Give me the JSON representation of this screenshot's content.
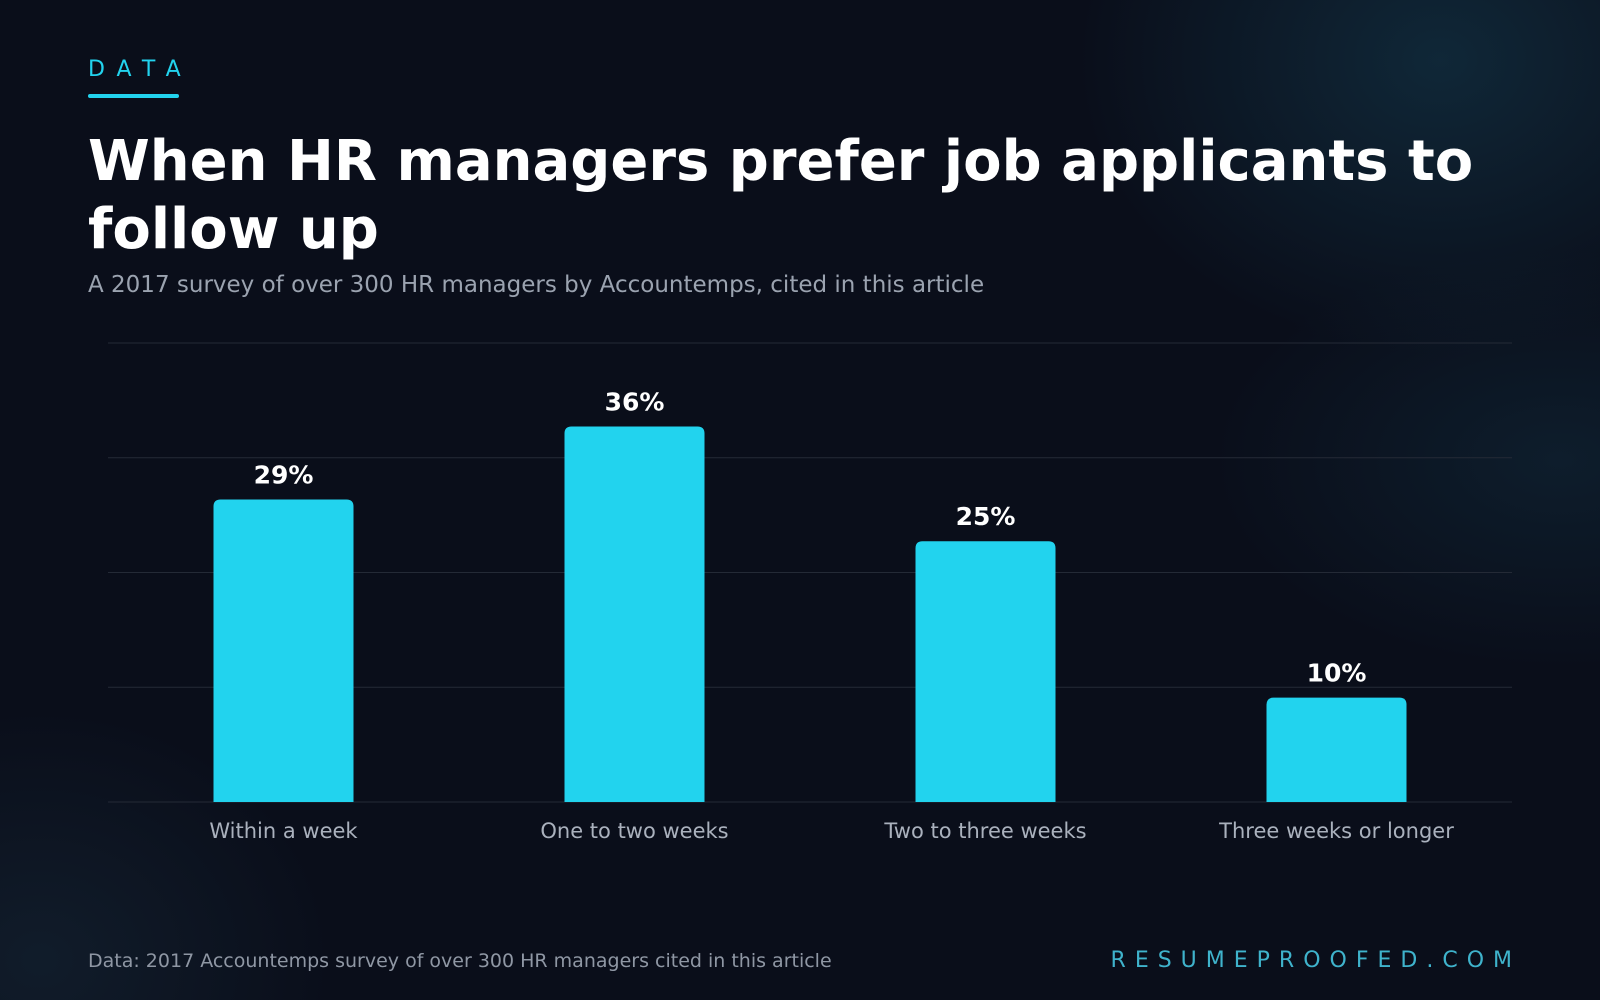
{
  "header": {
    "eyebrow": "DATA",
    "title": "When HR managers prefer job applicants to follow up",
    "subtitle": "A 2017 survey of over 300 HR managers by Accountemps, cited in this article"
  },
  "footer": {
    "note": "Data: 2017 Accountemps survey of over 300 HR managers cited in this article",
    "brand": "RESUMEPROOFED.COM"
  },
  "colors": {
    "accent": "#22d3ee",
    "brand": "#3fb3cc",
    "grid": "#242a36",
    "value_label": "#ffffff",
    "tick_label": "#aab1bd"
  },
  "chart_data": {
    "type": "bar",
    "title": "When HR managers prefer job applicants to follow up",
    "subtitle": "A 2017 survey of over 300 HR managers by Accountemps, cited in this article",
    "categories": [
      "Within a week",
      "One to two weeks",
      "Two to three weeks",
      "Three weeks or longer"
    ],
    "values": [
      29,
      36,
      25,
      10
    ],
    "value_labels": [
      "29%",
      "36%",
      "25%",
      "10%"
    ],
    "unit": "%",
    "xlabel": "",
    "ylabel": "",
    "ylim": [
      0,
      44
    ],
    "grid": true,
    "legend": "none"
  }
}
